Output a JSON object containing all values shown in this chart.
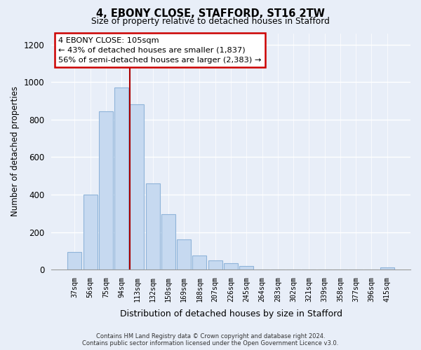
{
  "title": "4, EBONY CLOSE, STAFFORD, ST16 2TW",
  "subtitle": "Size of property relative to detached houses in Stafford",
  "xlabel": "Distribution of detached houses by size in Stafford",
  "ylabel": "Number of detached properties",
  "bar_labels": [
    "37sqm",
    "56sqm",
    "75sqm",
    "94sqm",
    "113sqm",
    "132sqm",
    "150sqm",
    "169sqm",
    "188sqm",
    "207sqm",
    "226sqm",
    "245sqm",
    "264sqm",
    "283sqm",
    "302sqm",
    "321sqm",
    "339sqm",
    "358sqm",
    "377sqm",
    "396sqm",
    "415sqm"
  ],
  "bar_values": [
    95,
    400,
    845,
    970,
    880,
    460,
    295,
    160,
    75,
    50,
    35,
    18,
    0,
    0,
    0,
    0,
    0,
    0,
    0,
    0,
    10
  ],
  "bar_color": "#c6d9f0",
  "bar_edge_color": "#8fb4d9",
  "vline_color": "#aa0000",
  "annotation_line1": "4 EBONY CLOSE: 105sqm",
  "annotation_line2": "← 43% of detached houses are smaller (1,837)",
  "annotation_line3": "56% of semi-detached houses are larger (2,383) →",
  "annotation_box_facecolor": "#ffffff",
  "annotation_box_edgecolor": "#cc0000",
  "ylim": [
    0,
    1260
  ],
  "yticks": [
    0,
    200,
    400,
    600,
    800,
    1000,
    1200
  ],
  "grid_color": "#ffffff",
  "background_color": "#e8eef8",
  "footer_line1": "Contains HM Land Registry data © Crown copyright and database right 2024.",
  "footer_line2": "Contains public sector information licensed under the Open Government Licence v3.0."
}
